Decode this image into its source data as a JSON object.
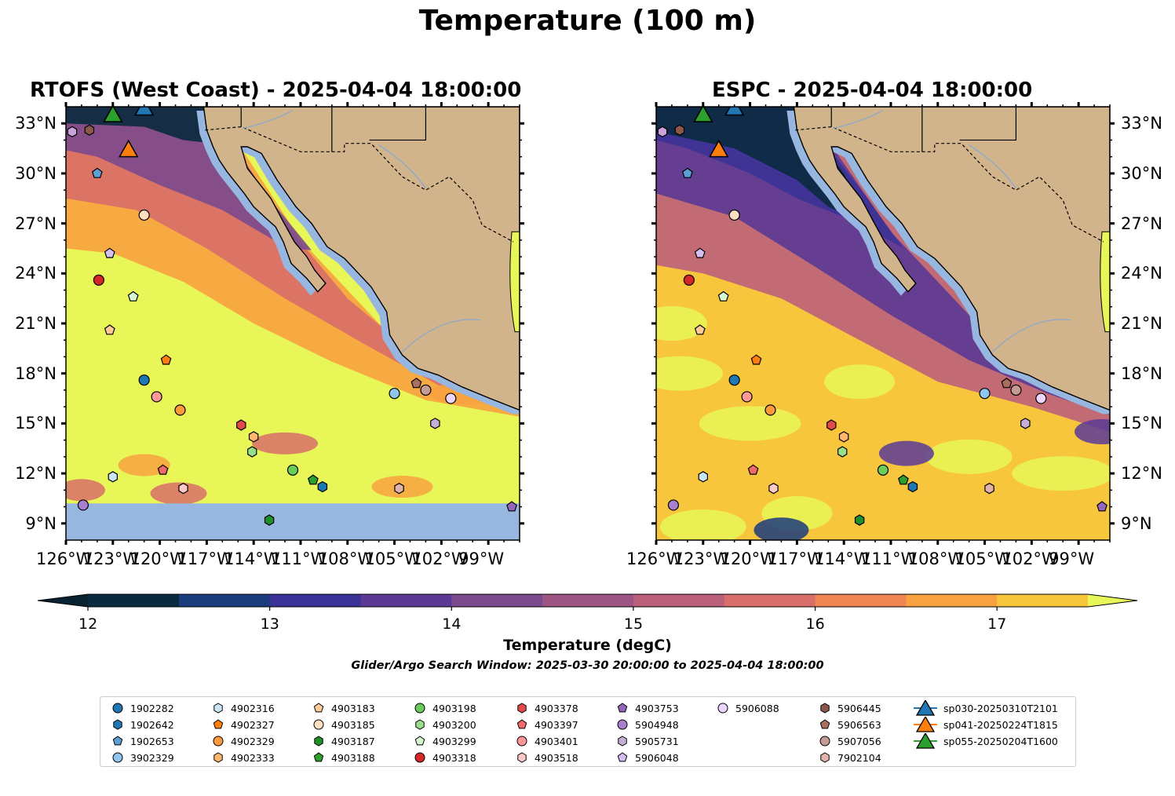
{
  "figure": {
    "title": "Temperature (100 m)",
    "window_text": "Glider/Argo Search Window: 2025-03-30 20:00:00 to 2025-04-04 18:00:00"
  },
  "panels": [
    {
      "title": "RTOFS (West Coast) - 2025-04-04 18:00:00",
      "model": "RTOFS"
    },
    {
      "title": "ESPC - 2025-04-04 18:00:00",
      "model": "ESPC"
    }
  ],
  "axes": {
    "lat_labels": [
      "33°N",
      "30°N",
      "27°N",
      "24°N",
      "21°N",
      "18°N",
      "15°N",
      "12°N",
      "9°N"
    ],
    "lon_labels": [
      "126°W",
      "123°W",
      "120°W",
      "117°W",
      "114°W",
      "111°W",
      "108°W",
      "105°W",
      "102°W",
      "99°W"
    ]
  },
  "colorbar": {
    "label": "Temperature (degC)",
    "ticks": [
      "12",
      "13",
      "14",
      "15",
      "16",
      "17"
    ],
    "range": [
      12,
      17.5
    ],
    "extend": "both",
    "colors": [
      "#0a2a3f",
      "#1a3b7c",
      "#3b3297",
      "#5b3a96",
      "#7b4a8c",
      "#9d5584",
      "#bb607a",
      "#d86e6a",
      "#ee8552",
      "#f8a23f",
      "#f8c63c"
    ],
    "under_color": "#082231",
    "over_color": "#e8f658",
    "land_color": "#d2b48c",
    "shelf_color": "#97b6e0"
  },
  "legend": {
    "items": [
      {
        "label": "1902282",
        "color": "#1f77b4",
        "marker": "circle"
      },
      {
        "label": "1902642",
        "color": "#1f77b4",
        "marker": "hexagon"
      },
      {
        "label": "1902653",
        "color": "#5b9fd3",
        "marker": "pentagon"
      },
      {
        "label": "3902329",
        "color": "#8ec6ef",
        "marker": "circle"
      },
      {
        "label": "4902316",
        "color": "#c9e5f6",
        "marker": "hexagon"
      },
      {
        "label": "4902327",
        "color": "#ff7f0e",
        "marker": "pentagon"
      },
      {
        "label": "4902329",
        "color": "#ff9a3f",
        "marker": "circle"
      },
      {
        "label": "4902333",
        "color": "#ffb56b",
        "marker": "hexagon"
      },
      {
        "label": "4903183",
        "color": "#ffcc99",
        "marker": "pentagon"
      },
      {
        "label": "4903185",
        "color": "#ffdfc2",
        "marker": "circle"
      },
      {
        "label": "4903187",
        "color": "#1e8f2a",
        "marker": "hexagon"
      },
      {
        "label": "4903188",
        "color": "#2ca02c",
        "marker": "pentagon"
      },
      {
        "label": "4903198",
        "color": "#6acc5b",
        "marker": "circle"
      },
      {
        "label": "4903200",
        "color": "#98df8a",
        "marker": "hexagon"
      },
      {
        "label": "4903299",
        "color": "#d6f5d0",
        "marker": "pentagon"
      },
      {
        "label": "4903318",
        "color": "#d62728",
        "marker": "circle"
      },
      {
        "label": "4903378",
        "color": "#e24a4a",
        "marker": "hexagon"
      },
      {
        "label": "4903397",
        "color": "#f06a6a",
        "marker": "pentagon"
      },
      {
        "label": "4903401",
        "color": "#ff9896",
        "marker": "circle"
      },
      {
        "label": "4903518",
        "color": "#ffc9c8",
        "marker": "hexagon"
      },
      {
        "label": "4903753",
        "color": "#9467bd",
        "marker": "pentagon"
      },
      {
        "label": "5904948",
        "color": "#a97fd0",
        "marker": "circle"
      },
      {
        "label": "5905731",
        "color": "#c5b0d5",
        "marker": "hexagon"
      },
      {
        "label": "5906048",
        "color": "#d6bff0",
        "marker": "pentagon"
      },
      {
        "label": "5906088",
        "color": "#ecd6ff",
        "marker": "circle"
      },
      {
        "label": "5906445",
        "color": "#8c564b",
        "marker": "hexagon"
      },
      {
        "label": "5906563",
        "color": "#a8705f",
        "marker": "pentagon"
      },
      {
        "label": "5907056",
        "color": "#c49c94",
        "marker": "circle"
      },
      {
        "label": "7902104",
        "color": "#e0b4aa",
        "marker": "hexagon"
      },
      {
        "label": "sp030-20250310T2101",
        "color": "#1f77b4",
        "marker": "triangle"
      },
      {
        "label": "sp041-20250224T1815",
        "color": "#ff7f0e",
        "marker": "triangle"
      },
      {
        "label": "sp055-20250204T1600",
        "color": "#2ca02c",
        "marker": "triangle"
      }
    ]
  },
  "floats": [
    {
      "id": "1902282",
      "lon": -121.0,
      "lat": 17.6
    },
    {
      "id": "1902642",
      "lon": -109.6,
      "lat": 11.2
    },
    {
      "id": "1902653",
      "lon": -124.0,
      "lat": 30.0
    },
    {
      "id": "3902329",
      "lon": -105.0,
      "lat": 16.8
    },
    {
      "id": "4902316",
      "lon": -123.0,
      "lat": 11.8
    },
    {
      "id": "4902327",
      "lon": -119.6,
      "lat": 18.8
    },
    {
      "id": "4902329",
      "lon": -118.7,
      "lat": 15.8
    },
    {
      "id": "4902333",
      "lon": -114.0,
      "lat": 14.2
    },
    {
      "id": "4903183",
      "lon": -123.2,
      "lat": 20.6
    },
    {
      "id": "4903185",
      "lon": -121.0,
      "lat": 27.5
    },
    {
      "id": "4903187",
      "lon": -113.0,
      "lat": 9.2
    },
    {
      "id": "4903188",
      "lon": -110.2,
      "lat": 11.6
    },
    {
      "id": "4903198",
      "lon": -111.5,
      "lat": 12.2
    },
    {
      "id": "4903200",
      "lon": -114.1,
      "lat": 13.3
    },
    {
      "id": "4903299",
      "lon": -121.7,
      "lat": 22.6
    },
    {
      "id": "4903318",
      "lon": -123.9,
      "lat": 23.6
    },
    {
      "id": "4903378",
      "lon": -114.8,
      "lat": 14.9
    },
    {
      "id": "4903397",
      "lon": -119.8,
      "lat": 12.2
    },
    {
      "id": "4903401",
      "lon": -120.2,
      "lat": 16.6
    },
    {
      "id": "4903518",
      "lon": -118.5,
      "lat": 11.1
    },
    {
      "id": "4903753",
      "lon": -97.5,
      "lat": 10.0
    },
    {
      "id": "5904948",
      "lon": -124.9,
      "lat": 10.1
    },
    {
      "id": "5905731",
      "lon": -102.4,
      "lat": 15.0
    },
    {
      "id": "5906048",
      "lon": -123.2,
      "lat": 25.2
    },
    {
      "id": "5906088",
      "lon": -101.4,
      "lat": 16.5
    },
    {
      "id": "5906445",
      "lon": -124.5,
      "lat": 32.6
    },
    {
      "id": "5906563",
      "lon": -103.6,
      "lat": 17.4
    },
    {
      "id": "5907056",
      "lon": -103.0,
      "lat": 17.0
    },
    {
      "id": "7902104",
      "lon": -104.7,
      "lat": 11.1
    },
    {
      "id": "extra-1",
      "lon": -125.6,
      "lat": 32.5
    }
  ],
  "gliders": [
    {
      "id": "sp030-20250310T2101",
      "lon": -121.0,
      "lat": 33.9
    },
    {
      "id": "sp041-20250224T1815",
      "lon": -122.0,
      "lat": 31.4
    },
    {
      "id": "sp055-20250204T1600",
      "lon": -123.0,
      "lat": 33.5
    }
  ],
  "map_extent": {
    "lon": [
      -126,
      -97
    ],
    "lat": [
      8,
      34
    ]
  }
}
